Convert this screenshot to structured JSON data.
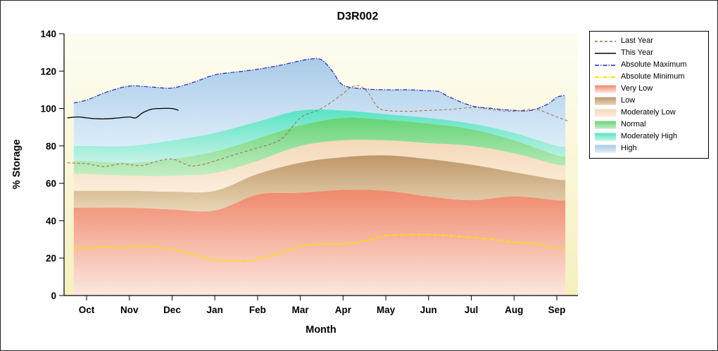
{
  "window": {
    "title": "D3R002"
  },
  "chart_data": {
    "type": "area",
    "title": "D3R002",
    "xlabel": "Month",
    "ylabel": "% Storage",
    "ylim": [
      0,
      140
    ],
    "yticks": [
      0,
      20,
      40,
      60,
      80,
      100,
      120,
      140
    ],
    "categories": [
      "Oct",
      "Nov",
      "Dec",
      "Jan",
      "Feb",
      "Mar",
      "Apr",
      "May",
      "Jun",
      "Jul",
      "Aug",
      "Sep"
    ],
    "background": {
      "top": "#FEFDF2",
      "bottom": "#F6F0BE"
    },
    "band_edge": {
      "left": -0.3,
      "right": 11.2
    },
    "bands": [
      {
        "name": "Very Low",
        "color_top": "#F0886C",
        "color_bottom": "#FCE8DF",
        "values": [
          47,
          47,
          46,
          45.5,
          54,
          55,
          56.5,
          56,
          53,
          51,
          53,
          51
        ]
      },
      {
        "name": "Low",
        "color_top": "#BE9768",
        "color_bottom": "#E9D6B6",
        "values": [
          56,
          56,
          55.5,
          56,
          65,
          71,
          74,
          75,
          73,
          70,
          66,
          62
        ]
      },
      {
        "name": "Moderately Low",
        "color_top": "#F5D8B9",
        "color_bottom": "#FBEEDC",
        "values": [
          65,
          64,
          64,
          65.5,
          72,
          80,
          83,
          83,
          81.5,
          80,
          76,
          70
        ]
      },
      {
        "name": "Normal",
        "color_top": "#64D375",
        "color_bottom": "#C6EEC5",
        "values": [
          72,
          71,
          73,
          77,
          84,
          91,
          95,
          94,
          92,
          89,
          83,
          75
        ]
      },
      {
        "name": "Moderately High",
        "color_top": "#59E3C5",
        "color_bottom": "#C3F3E6",
        "values": [
          80,
          80,
          83,
          87,
          93,
          99,
          99,
          97,
          95,
          92,
          87,
          80
        ]
      },
      {
        "name": "High",
        "color_top": "#A9CBE8",
        "color_bottom": "#DDEDF9",
        "top_from_line": "Absolute Maximum"
      }
    ],
    "lines": [
      {
        "name": "Absolute Maximum",
        "color": "#2121CC",
        "dash": "6 2 1.5 2",
        "width": 1.2,
        "x": [
          -0.3,
          0,
          0.5,
          1,
          1.5,
          2,
          2.5,
          3,
          3.5,
          4,
          4.5,
          5,
          5.25,
          5.5,
          5.75,
          6,
          6.5,
          7,
          7.5,
          8,
          8.25,
          8.5,
          9,
          9.5,
          10,
          10.4,
          10.8,
          11,
          11.2
        ],
        "v": [
          103,
          104.5,
          109,
          112,
          111.5,
          111,
          114,
          118,
          119.5,
          121,
          123,
          125.5,
          126.5,
          126,
          120,
          112.5,
          110.5,
          110,
          110,
          109.5,
          109,
          106,
          101.5,
          100,
          99,
          99,
          102.5,
          106,
          107
        ]
      },
      {
        "name": "Absolute Minimum",
        "color": "#FFDE00",
        "dash": "6 2 1.5 2",
        "width": 2,
        "x": [
          -0.3,
          0,
          0.4,
          0.8,
          1,
          1.4,
          1.8,
          2,
          2.4,
          2.8,
          3,
          3.4,
          3.8,
          4,
          4.5,
          5,
          5.5,
          6,
          6.5,
          7,
          7.5,
          8,
          8.5,
          9,
          9.5,
          10,
          10.5,
          11,
          11.2
        ],
        "v": [
          25.5,
          25.5,
          26,
          25.5,
          26,
          26.5,
          25.5,
          24.5,
          22.5,
          20,
          19,
          18.5,
          18.5,
          19.5,
          22.5,
          26.5,
          27.5,
          27.5,
          29,
          32,
          32.5,
          32.5,
          32,
          31,
          30,
          28.5,
          27.5,
          25.5,
          25
        ]
      },
      {
        "name": "Last Year",
        "color": "#A06A45",
        "dash": "4 3",
        "width": 1,
        "x": [
          -0.45,
          0,
          0.4,
          0.8,
          1,
          1.3,
          1.6,
          2,
          2.4,
          2.7,
          3,
          3.5,
          4,
          4.3,
          4.6,
          5,
          5.4,
          5.7,
          6,
          6.2,
          6.4,
          6.6,
          6.8,
          7,
          7.5,
          8,
          8.5,
          9,
          9.3,
          9.6,
          10,
          10.5,
          11,
          11.3
        ],
        "v": [
          71,
          70.5,
          69,
          70.5,
          70,
          69.5,
          71.5,
          73,
          69.5,
          70,
          72,
          75.5,
          79,
          81,
          84.5,
          95,
          99,
          103,
          108,
          111.5,
          112,
          108,
          101,
          99,
          98.5,
          99,
          99.5,
          100.5,
          100,
          99,
          98.5,
          99.5,
          95.5,
          93
        ]
      },
      {
        "name": "This Year",
        "color": "#000000",
        "dash": "",
        "width": 1.3,
        "x": [
          -0.45,
          -0.2,
          0,
          0.25,
          0.5,
          0.75,
          1,
          1.15,
          1.3,
          1.5,
          1.7,
          2,
          2.15
        ],
        "v": [
          95,
          95.5,
          95,
          94.5,
          94.5,
          95,
          95.5,
          95,
          97.5,
          99.5,
          100,
          100,
          99
        ]
      }
    ]
  },
  "legend": {
    "order": [
      "Last Year",
      "This Year",
      "Absolute Maximum",
      "Absolute Minimum",
      "Very Low",
      "Low",
      "Moderately Low",
      "Normal",
      "Moderately High",
      "High"
    ]
  }
}
